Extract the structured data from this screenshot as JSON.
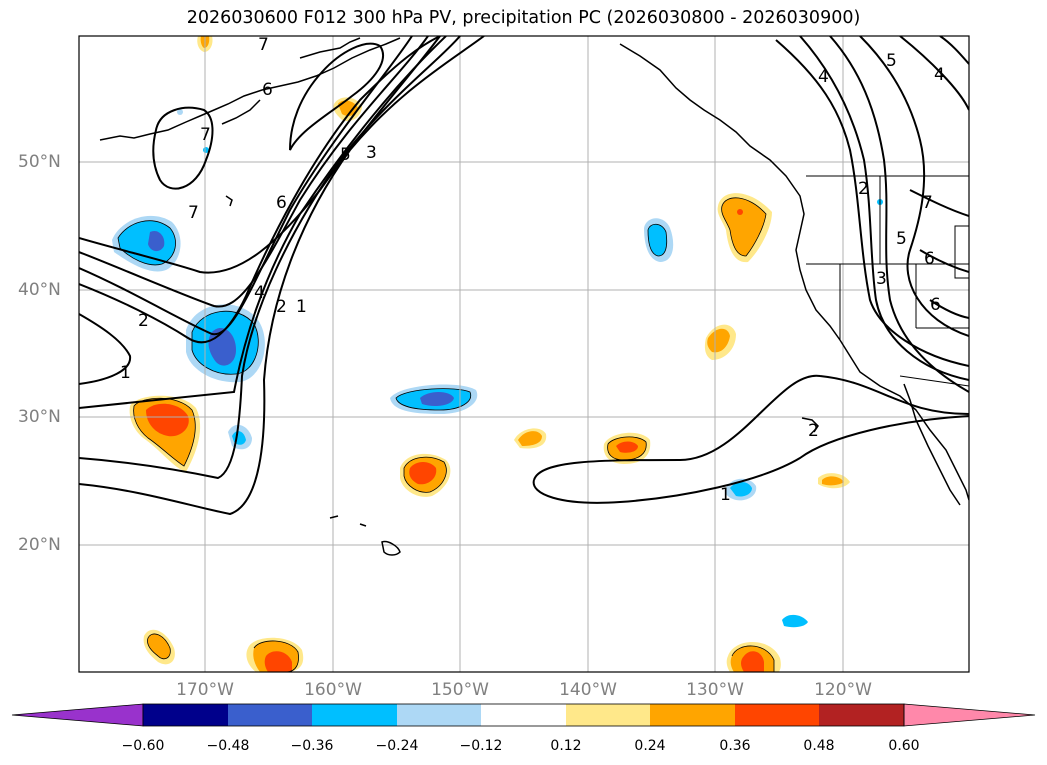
{
  "title": "2026030600 F012 300 hPa PV, precipitation PC (2026030800 - 2026030900)",
  "lat_labels": [
    "50°N",
    "40°N",
    "30°N",
    "20°N"
  ],
  "lon_labels": [
    "170°W",
    "160°W",
    "150°W",
    "140°W",
    "130°W",
    "120°W"
  ],
  "colorbar": {
    "ticks": [
      "−0.60",
      "−0.48",
      "−0.36",
      "−0.24",
      "−0.12",
      "0.12",
      "0.24",
      "0.36",
      "0.48",
      "0.60"
    ],
    "colors": [
      "#9932cc",
      "#00008b",
      "#3a5fcd",
      "#00bfff",
      "#add8f5",
      "#ffffff",
      "#ffe88a",
      "#ffa500",
      "#ff4500",
      "#b22222",
      "#ff88aa"
    ]
  },
  "contour_labels": [
    "7",
    "6",
    "7",
    "5",
    "3",
    "6",
    "7",
    "4",
    "2",
    "1",
    "2",
    "1",
    "4",
    "5",
    "4",
    "7",
    "2",
    "5",
    "3",
    "6",
    "6",
    "2",
    "1"
  ],
  "colors": {
    "contour": "#000000",
    "grid": "#b0b0b0",
    "coast": "#000000"
  }
}
